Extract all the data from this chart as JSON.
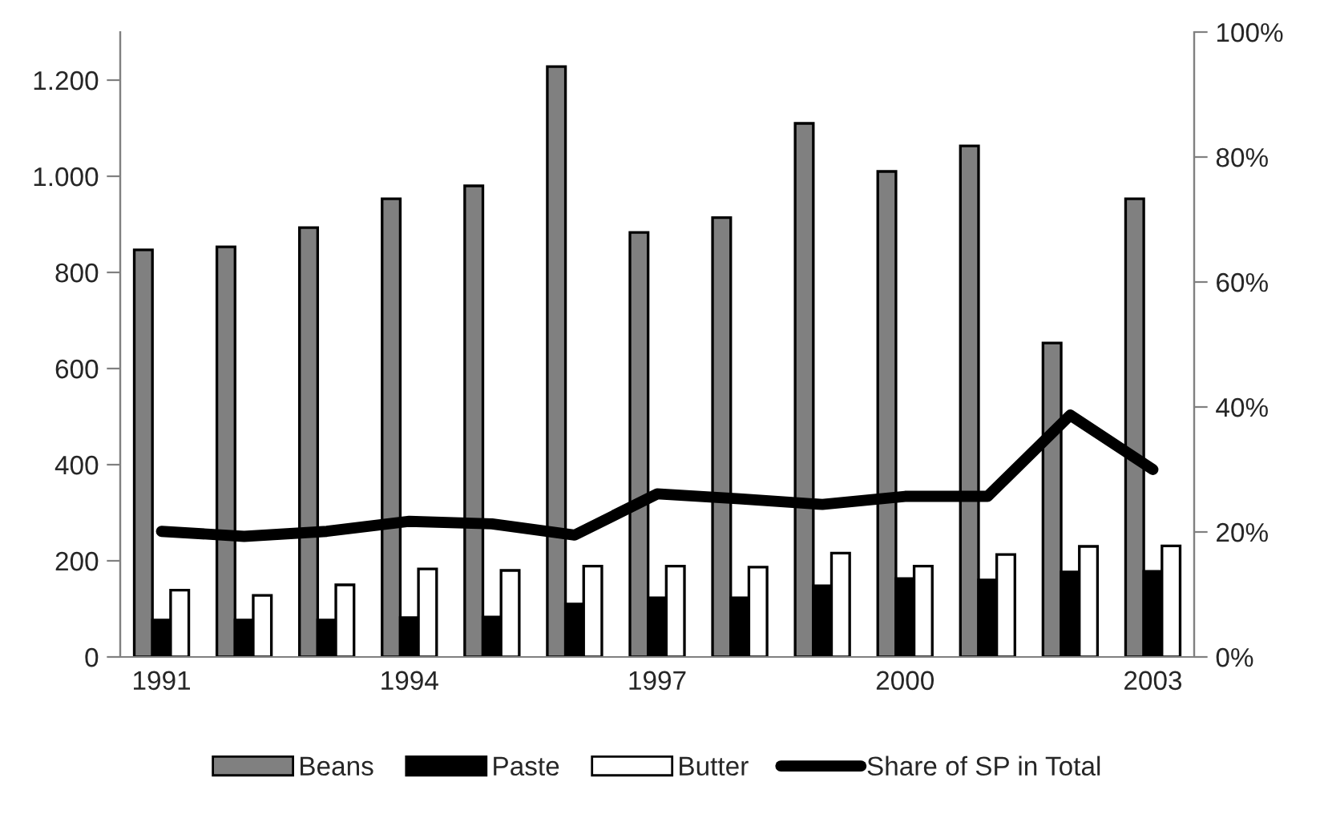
{
  "chart_data": {
    "type": "bar",
    "categories": [
      "1991",
      null,
      null,
      "1994",
      null,
      null,
      "1997",
      null,
      null,
      "2000",
      null,
      null,
      "2003"
    ],
    "series": [
      {
        "name": "Beans",
        "color": "#808080",
        "values": [
          847,
          853,
          893,
          953,
          980,
          1228,
          883,
          914,
          1110,
          1010,
          1063,
          653,
          953
        ]
      },
      {
        "name": "Paste",
        "color": "#000000",
        "values": [
          77,
          77,
          77,
          82,
          83,
          110,
          123,
          123,
          148,
          163,
          160,
          177,
          178
        ]
      },
      {
        "name": "Butter",
        "color": "#ffffff",
        "values": [
          139,
          128,
          150,
          183,
          180,
          189,
          189,
          187,
          216,
          189,
          213,
          230,
          231
        ]
      },
      {
        "name": "Share of SP in Total",
        "type": "line",
        "axis": "y2",
        "color": "#000000",
        "values": [
          20.1,
          19.3,
          20.1,
          21.7,
          21.3,
          19.5,
          26.1,
          25.3,
          24.4,
          25.7,
          25.7,
          38.7,
          30.0
        ]
      }
    ],
    "ylim": [
      0,
      1300
    ],
    "yticks": [
      0,
      200,
      400,
      600,
      800,
      {
        "value": 1000,
        "label": "1.000"
      },
      {
        "value": 1200,
        "label": "1.200"
      }
    ],
    "y2lim": [
      0,
      100
    ],
    "y2ticks": [
      {
        "value": 0,
        "label": "0%"
      },
      {
        "value": 20,
        "label": "20%"
      },
      {
        "value": 40,
        "label": "40%"
      },
      {
        "value": 60,
        "label": "60%"
      },
      {
        "value": 80,
        "label": "80%"
      },
      {
        "value": 100,
        "label": "100%"
      }
    ],
    "legend": "bottom",
    "grid": false
  }
}
